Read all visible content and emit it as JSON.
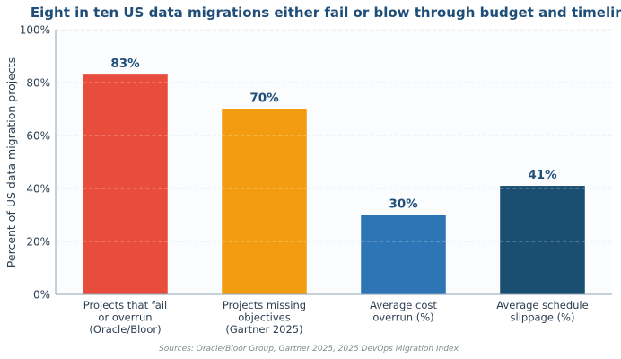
{
  "chart_data": {
    "type": "bar",
    "title": "Eight in ten US data migrations either fail or blow through budget and timeline",
    "ylabel": "Percent of US data migration projects",
    "xlabel": "",
    "ylim": [
      0,
      100
    ],
    "yticks": [
      0,
      20,
      40,
      60,
      80,
      100
    ],
    "ytick_labels": [
      "0%",
      "20%",
      "40%",
      "60%",
      "80%",
      "100%"
    ],
    "grid": true,
    "categories": [
      [
        "Projects that fail",
        "or overrun",
        "(Oracle/Bloor)"
      ],
      [
        "Projects missing",
        "objectives",
        "(Gartner 2025)"
      ],
      [
        "Average cost",
        "overrun (%)"
      ],
      [
        "Average schedule",
        "slippage (%)"
      ]
    ],
    "values": [
      83,
      70,
      30,
      41
    ],
    "value_labels": [
      "83%",
      "70%",
      "30%",
      "41%"
    ],
    "colors": [
      "#e84c3d",
      "#f39c12",
      "#2e75b6",
      "#1b4f72"
    ],
    "source": "Sources: Oracle/Bloor Group, Gartner 2025, 2025 DevOps Migration Index"
  }
}
